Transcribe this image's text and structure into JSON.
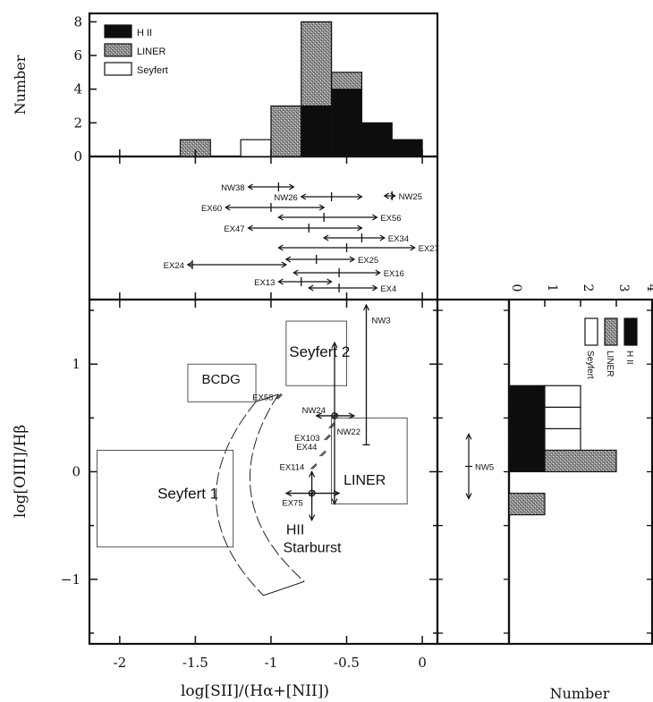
{
  "figure": {
    "xlabel": "log[SII]/(Hα+[NII])",
    "ylabel": "log[OIII]/Hβ",
    "top_ylabel": "Number",
    "right_xlabel": "Number",
    "colors": {
      "hii": "#0d0d0d",
      "liner": "#7a7a7a",
      "seyfert": "#ffffff",
      "ink": "#111111"
    }
  },
  "chart_data": [
    {
      "type": "bar",
      "panel": "top-histogram",
      "ylabel": "Number",
      "xlim": [
        -2.2,
        0.1
      ],
      "ylim": [
        0,
        8.5
      ],
      "yticks": [
        0,
        2,
        4,
        6,
        8
      ],
      "bin_edges": [
        -1.6,
        -1.4,
        -1.2,
        -1.0,
        -0.8,
        -0.6,
        -0.4,
        -0.2,
        0.0
      ],
      "series": [
        {
          "name": "H II",
          "values": [
            0,
            0,
            0,
            0,
            3,
            4,
            2,
            1
          ],
          "pattern": "solid-black"
        },
        {
          "name": "LINER",
          "values": [
            1,
            0,
            0,
            3,
            5,
            1,
            0,
            0
          ],
          "pattern": "stipple"
        },
        {
          "name": "Seyfert",
          "values": [
            0,
            0,
            1,
            0,
            0,
            0,
            0,
            0
          ],
          "pattern": "open"
        }
      ],
      "legend": [
        "H II",
        "LINER",
        "Seyfert"
      ],
      "legend_position": "top-left"
    },
    {
      "type": "range",
      "panel": "middle-sii-ranges",
      "xlim": [
        -2.2,
        0.1
      ],
      "ranges": [
        {
          "label": "NW38",
          "lo": -1.15,
          "hi": -0.85,
          "mark": -0.95
        },
        {
          "label": "NW26",
          "lo": -0.8,
          "hi": -0.4,
          "mark": -0.6
        },
        {
          "label": "NW25",
          "lo": -0.25,
          "hi": -0.18,
          "mark": -0.2
        },
        {
          "label": "EX60",
          "lo": -1.3,
          "hi": -0.65,
          "mark": -1.0
        },
        {
          "label": "EX56",
          "lo": -0.95,
          "hi": -0.3,
          "mark": -0.65
        },
        {
          "label": "EX47",
          "lo": -1.15,
          "hi": -0.4,
          "mark": -0.75
        },
        {
          "label": "EX34",
          "lo": -0.65,
          "hi": -0.25,
          "mark": -0.4
        },
        {
          "label": "EX27",
          "lo": -0.95,
          "hi": -0.05,
          "mark": -0.5
        },
        {
          "label": "EX24",
          "lo": -1.55,
          "hi": -0.9,
          "mark": -1.52
        },
        {
          "label": "EX25",
          "lo": -0.9,
          "hi": -0.45,
          "mark": -0.7
        },
        {
          "label": "EX16",
          "lo": -0.85,
          "hi": -0.28,
          "mark": -0.55
        },
        {
          "label": "EX13",
          "lo": -0.95,
          "hi": -0.6,
          "mark": -0.8
        },
        {
          "label": "EX4",
          "lo": -0.75,
          "hi": -0.3,
          "mark": -0.55
        }
      ]
    },
    {
      "type": "scatter",
      "panel": "main-diagnostic",
      "xlabel": "log[SII]/(Hα+[NII])",
      "ylabel": "log[OIII]/Hβ",
      "xlim": [
        -2.2,
        0.1
      ],
      "ylim": [
        -1.6,
        1.6
      ],
      "xticks": [
        -2,
        -1.5,
        -1,
        -0.5,
        0
      ],
      "yticks": [
        -1,
        0,
        1
      ],
      "regions": [
        {
          "label": "Seyfert 1",
          "x": [
            -2.15,
            -1.25
          ],
          "y": [
            -0.7,
            0.2
          ]
        },
        {
          "label": "BCDG",
          "x": [
            -1.55,
            -1.1
          ],
          "y": [
            0.65,
            1.0
          ]
        },
        {
          "label": "Seyfert 2",
          "x": [
            -0.9,
            -0.5
          ],
          "y": [
            0.8,
            1.4
          ]
        },
        {
          "label": "LINER",
          "x": [
            -0.6,
            -0.1
          ],
          "y": [
            -0.3,
            0.5
          ]
        }
      ],
      "band_label": [
        "HII",
        "Starburst"
      ],
      "points": [
        {
          "label": "NW24",
          "x": -0.58,
          "y": 0.52
        },
        {
          "label": "NW22",
          "x": -0.6,
          "y": 0.43
        },
        {
          "label": "EX58",
          "x": -0.95,
          "y": 0.7
        },
        {
          "label": "EX103",
          "x": -0.63,
          "y": 0.32
        },
        {
          "label": "EX44",
          "x": -0.66,
          "y": 0.17
        },
        {
          "label": "EX114",
          "x": -0.72,
          "y": 0.05
        },
        {
          "label": "EX75",
          "x": -0.73,
          "y": -0.2
        }
      ],
      "error_bars": [
        {
          "label": "NW3",
          "x": -0.37,
          "ylo": 0.25,
          "yhi": 1.55,
          "head": "up"
        },
        {
          "label": "",
          "x": -0.58,
          "ylo": -0.3,
          "yhi": 1.2,
          "xlo": -0.7,
          "xhi": -0.45,
          "y": 0.52
        },
        {
          "label": "",
          "x": -0.73,
          "ylo": -0.45,
          "yhi": 0.0,
          "xlo": -0.9,
          "xhi": -0.55,
          "y": -0.2
        }
      ]
    },
    {
      "type": "range",
      "panel": "right-oiii-ranges",
      "ylim": [
        -1.6,
        1.6
      ],
      "ranges": [
        {
          "label": "NW5",
          "lo": -0.25,
          "hi": 0.35
        }
      ]
    },
    {
      "type": "bar",
      "panel": "right-histogram",
      "orientation": "horizontal",
      "xlabel": "Number",
      "xlim": [
        0,
        4
      ],
      "xticks": [
        0,
        1,
        2,
        3,
        4
      ],
      "ylim": [
        -1.6,
        1.6
      ],
      "bin_edges": [
        -0.4,
        -0.2,
        0.0,
        0.2,
        0.4,
        0.6,
        0.8
      ],
      "series": [
        {
          "name": "H II",
          "values": [
            0,
            0,
            1,
            1,
            1,
            1
          ],
          "pattern": "solid-black"
        },
        {
          "name": "LINER",
          "values": [
            1,
            0,
            2,
            0,
            0,
            0
          ],
          "pattern": "stipple"
        },
        {
          "name": "Seyfert",
          "values": [
            0,
            0,
            0,
            1,
            1,
            1
          ],
          "pattern": "open"
        }
      ],
      "legend": [
        "H II",
        "LINER",
        "Seyfert"
      ],
      "legend_position": "top-right"
    }
  ]
}
